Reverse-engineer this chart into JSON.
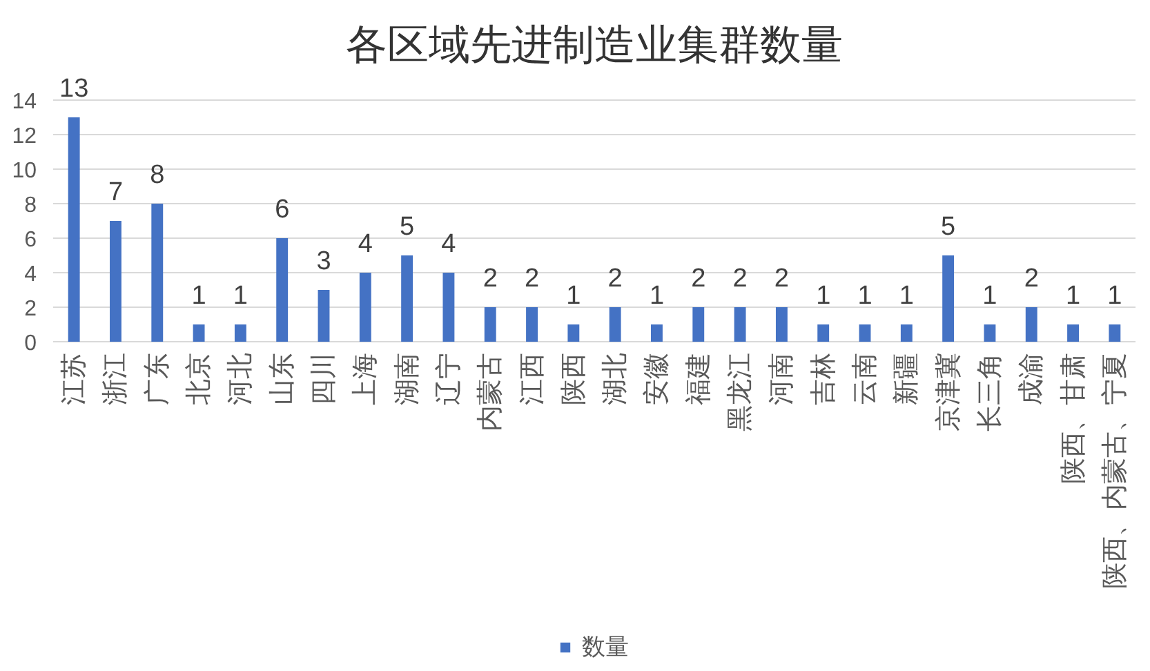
{
  "chart_data": {
    "type": "bar",
    "title": "各区域先进制造业集群数量",
    "categories": [
      "江苏",
      "浙江",
      "广东",
      "北京",
      "河北",
      "山东",
      "四川",
      "上海",
      "湖南",
      "辽宁",
      "内蒙古",
      "江西",
      "陕西",
      "湖北",
      "安徽",
      "福建",
      "黑龙江",
      "河南",
      "吉林",
      "云南",
      "新疆",
      "京津冀",
      "长三角",
      "成渝",
      "陕西、甘肃",
      "陕西、内蒙古、宁夏"
    ],
    "series": [
      {
        "name": "数量",
        "color": "#4472c4",
        "values": [
          13,
          7,
          8,
          1,
          1,
          6,
          3,
          4,
          5,
          4,
          2,
          2,
          1,
          2,
          1,
          2,
          2,
          2,
          1,
          1,
          1,
          5,
          1,
          2,
          1,
          1
        ]
      }
    ],
    "ylim": [
      0,
      14
    ],
    "yticks": [
      0,
      2,
      4,
      6,
      8,
      10,
      12,
      14
    ],
    "grid": "y",
    "legend": "bottom",
    "data_labels": true
  }
}
